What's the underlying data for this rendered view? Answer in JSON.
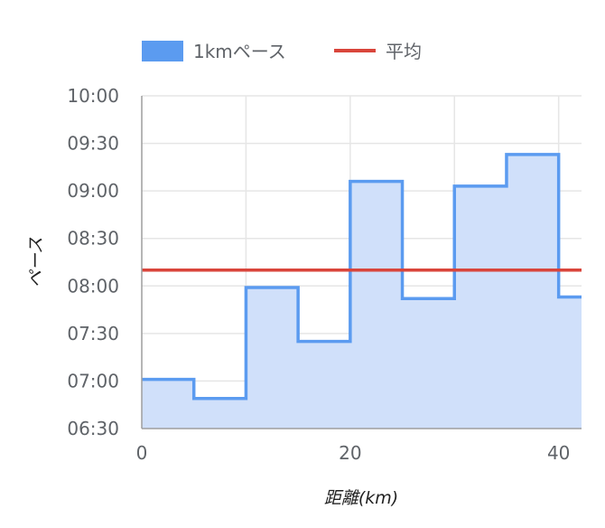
{
  "chart_data": {
    "type": "area",
    "xlabel": "距離(km)",
    "ylabel": "ペース",
    "xlim": [
      0,
      42.195
    ],
    "ylim": [
      390,
      600
    ],
    "x_ticks": [
      {
        "value": 0,
        "label": "0"
      },
      {
        "value": 20,
        "label": "20"
      },
      {
        "value": 40,
        "label": "40"
      }
    ],
    "y_ticks": [
      {
        "value": 390,
        "label": "06:30"
      },
      {
        "value": 420,
        "label": "07:00"
      },
      {
        "value": 450,
        "label": "07:30"
      },
      {
        "value": 480,
        "label": "08:00"
      },
      {
        "value": 510,
        "label": "08:30"
      },
      {
        "value": 540,
        "label": "09:00"
      },
      {
        "value": 570,
        "label": "09:30"
      },
      {
        "value": 600,
        "label": "10:00"
      }
    ],
    "x_gridlines": [
      0,
      10,
      20,
      30,
      40
    ],
    "grid": true,
    "legend_position": "top",
    "series": [
      {
        "name": "1kmペース",
        "kind": "step-area",
        "color": "#5b9bf0",
        "fill": "#d0e0fa",
        "segments": [
          {
            "x_start": 0,
            "x_end": 5,
            "pace_seconds": 421
          },
          {
            "x_start": 5,
            "x_end": 10,
            "pace_seconds": 409
          },
          {
            "x_start": 10,
            "x_end": 15,
            "pace_seconds": 479
          },
          {
            "x_start": 15,
            "x_end": 20,
            "pace_seconds": 445
          },
          {
            "x_start": 20,
            "x_end": 25,
            "pace_seconds": 546
          },
          {
            "x_start": 25,
            "x_end": 30,
            "pace_seconds": 472
          },
          {
            "x_start": 30,
            "x_end": 35,
            "pace_seconds": 543
          },
          {
            "x_start": 35,
            "x_end": 40,
            "pace_seconds": 563
          },
          {
            "x_start": 40,
            "x_end": 42.195,
            "pace_seconds": 473
          }
        ]
      },
      {
        "name": "平均",
        "kind": "line",
        "color": "#d9453b",
        "value": 490
      }
    ]
  }
}
